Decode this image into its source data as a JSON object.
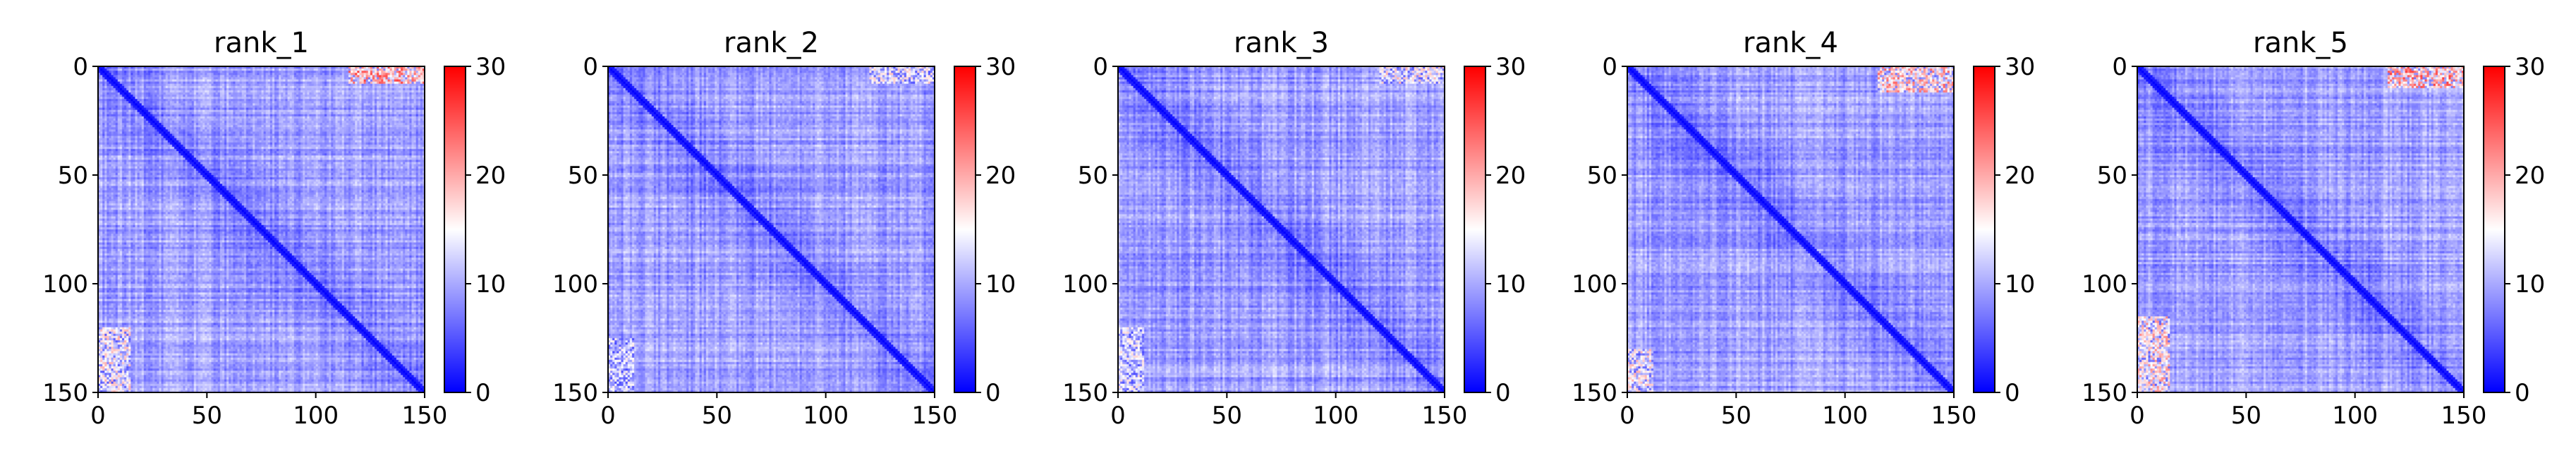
{
  "chart_data": [
    {
      "type": "heatmap",
      "title": "rank_1",
      "xlim": [
        0,
        150
      ],
      "ylim": [
        150,
        0
      ],
      "xticks": [
        0,
        50,
        100,
        150
      ],
      "yticks": [
        0,
        50,
        100,
        150
      ],
      "colorbar": {
        "range": [
          0,
          30
        ],
        "ticks": [
          0,
          10,
          20,
          30
        ],
        "colormap": "bwr"
      },
      "hot_regions": [
        {
          "x": [
            115,
            150
          ],
          "y": [
            0,
            8
          ],
          "value": 24
        },
        {
          "x": [
            0,
            15
          ],
          "y": [
            120,
            150
          ],
          "value": 18
        }
      ]
    },
    {
      "type": "heatmap",
      "title": "rank_2",
      "xlim": [
        0,
        150
      ],
      "ylim": [
        150,
        0
      ],
      "xticks": [
        0,
        50,
        100,
        150
      ],
      "yticks": [
        0,
        50,
        100,
        150
      ],
      "colorbar": {
        "range": [
          0,
          30
        ],
        "ticks": [
          0,
          10,
          20,
          30
        ],
        "colormap": "bwr"
      },
      "hot_regions": [
        {
          "x": [
            120,
            150
          ],
          "y": [
            0,
            8
          ],
          "value": 17
        },
        {
          "x": [
            0,
            12
          ],
          "y": [
            125,
            150
          ],
          "value": 15
        }
      ]
    },
    {
      "type": "heatmap",
      "title": "rank_3",
      "xlim": [
        0,
        150
      ],
      "ylim": [
        150,
        0
      ],
      "xticks": [
        0,
        50,
        100,
        150
      ],
      "yticks": [
        0,
        50,
        100,
        150
      ],
      "colorbar": {
        "range": [
          0,
          30
        ],
        "ticks": [
          0,
          10,
          20,
          30
        ],
        "colormap": "bwr"
      },
      "hot_regions": [
        {
          "x": [
            120,
            150
          ],
          "y": [
            0,
            8
          ],
          "value": 18
        },
        {
          "x": [
            0,
            12
          ],
          "y": [
            120,
            150
          ],
          "value": 16
        }
      ]
    },
    {
      "type": "heatmap",
      "title": "rank_4",
      "xlim": [
        0,
        150
      ],
      "ylim": [
        150,
        0
      ],
      "xticks": [
        0,
        50,
        100,
        150
      ],
      "yticks": [
        0,
        50,
        100,
        150
      ],
      "colorbar": {
        "range": [
          0,
          30
        ],
        "ticks": [
          0,
          10,
          20,
          30
        ],
        "colormap": "bwr"
      },
      "hot_regions": [
        {
          "x": [
            115,
            150
          ],
          "y": [
            0,
            12
          ],
          "value": 22
        },
        {
          "x": [
            0,
            12
          ],
          "y": [
            130,
            150
          ],
          "value": 18
        }
      ]
    },
    {
      "type": "heatmap",
      "title": "rank_5",
      "xlim": [
        0,
        150
      ],
      "ylim": [
        150,
        0
      ],
      "xticks": [
        0,
        50,
        100,
        150
      ],
      "yticks": [
        0,
        50,
        100,
        150
      ],
      "colorbar": {
        "range": [
          0,
          30
        ],
        "ticks": [
          0,
          10,
          20,
          30
        ],
        "colormap": "bwr"
      },
      "hot_regions": [
        {
          "x": [
            115,
            150
          ],
          "y": [
            0,
            10
          ],
          "value": 24
        },
        {
          "x": [
            0,
            15
          ],
          "y": [
            115,
            150
          ],
          "value": 20
        }
      ]
    }
  ]
}
